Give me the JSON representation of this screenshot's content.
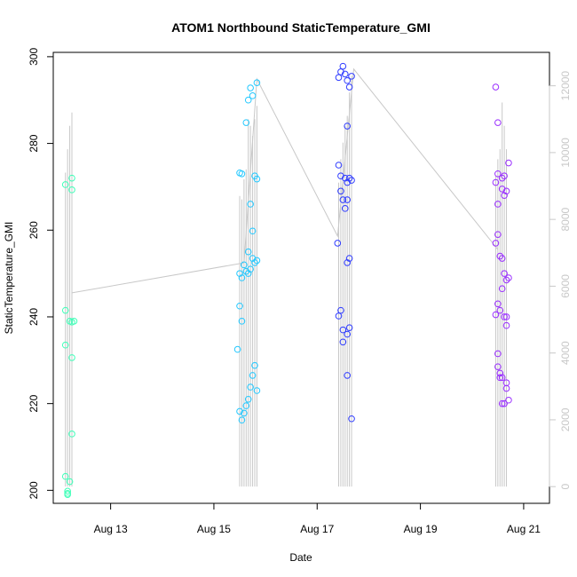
{
  "chart_data": {
    "type": "scatter",
    "title": "ATOM1 Northbound StaticTemperature_GMI",
    "xlabel": "Date",
    "ylabel": "StaticTemperature_GMI",
    "xlim": [
      "2016-08-11 21:20",
      "2016-08-21 12:00"
    ],
    "ylim": [
      197,
      301
    ],
    "y2lim": [
      -500,
      13000
    ],
    "x_ticks": [
      {
        "label": "Aug 13",
        "date": "2016-08-13 00:00"
      },
      {
        "label": "Aug 15",
        "date": "2016-08-15 00:00"
      },
      {
        "label": "Aug 17",
        "date": "2016-08-17 00:00"
      },
      {
        "label": "Aug 19",
        "date": "2016-08-19 00:00"
      },
      {
        "label": "Aug 21",
        "date": "2016-08-21 00:00"
      }
    ],
    "y_ticks": [
      200,
      220,
      240,
      260,
      280,
      300
    ],
    "y2_ticks": [
      0,
      2000,
      4000,
      6000,
      8000,
      10000,
      12000
    ],
    "grid": false,
    "legend": "none",
    "colors": {
      "flight1": "#3fffb8",
      "flight2": "#23c8ff",
      "flight3": "#2f3cff",
      "flight4": "#9a2fff",
      "altitude": "#c8c8c8"
    },
    "altitude_track": [
      {
        "date": "2016-08-12 06:00",
        "value": 5800
      },
      {
        "date": "2016-08-15 14:00",
        "value": 6700
      },
      {
        "date": "2016-08-15 20:00",
        "value": 12200
      },
      {
        "date": "2016-08-17 09:30",
        "value": 7500
      },
      {
        "date": "2016-08-17 17:00",
        "value": 12500
      },
      {
        "date": "2016-08-20 12:00",
        "value": 7100
      }
    ],
    "altitude_profiles": [
      {
        "date": "2016-08-12 03:00",
        "top": 9400
      },
      {
        "date": "2016-08-12 04:00",
        "top": 10100
      },
      {
        "date": "2016-08-12 05:00",
        "top": 10800
      },
      {
        "date": "2016-08-12 06:00",
        "top": 11200
      },
      {
        "date": "2016-08-15 12:00",
        "top": 8700
      },
      {
        "date": "2016-08-15 13:00",
        "top": 8600
      },
      {
        "date": "2016-08-15 14:00",
        "top": 9200
      },
      {
        "date": "2016-08-15 15:00",
        "top": 9500
      },
      {
        "date": "2016-08-15 16:00",
        "top": 11000
      },
      {
        "date": "2016-08-15 17:00",
        "top": 10800
      },
      {
        "date": "2016-08-15 18:00",
        "top": 10500
      },
      {
        "date": "2016-08-15 19:00",
        "top": 11000
      },
      {
        "date": "2016-08-15 20:00",
        "top": 11400
      },
      {
        "date": "2016-08-17 10:00",
        "top": 9100
      },
      {
        "date": "2016-08-17 11:00",
        "top": 9800
      },
      {
        "date": "2016-08-17 12:00",
        "top": 10300
      },
      {
        "date": "2016-08-17 13:00",
        "top": 10800
      },
      {
        "date": "2016-08-17 14:00",
        "top": 11100
      },
      {
        "date": "2016-08-17 15:00",
        "top": 11800
      },
      {
        "date": "2016-08-17 16:00",
        "top": 12300
      },
      {
        "date": "2016-08-20 11:00",
        "top": 9300
      },
      {
        "date": "2016-08-20 12:00",
        "top": 9800
      },
      {
        "date": "2016-08-20 13:00",
        "top": 10100
      },
      {
        "date": "2016-08-20 14:00",
        "top": 11500
      },
      {
        "date": "2016-08-20 15:00",
        "top": 10800
      },
      {
        "date": "2016-08-20 16:00",
        "top": 10100
      }
    ],
    "series": [
      {
        "color_key": "flight1",
        "points": [
          {
            "date": "2016-08-12 03:00",
            "value": 270.5
          },
          {
            "date": "2016-08-12 03:00",
            "value": 241.5
          },
          {
            "date": "2016-08-12 03:00",
            "value": 233.5
          },
          {
            "date": "2016-08-12 03:00",
            "value": 203.2
          },
          {
            "date": "2016-08-12 04:00",
            "value": 199.8
          },
          {
            "date": "2016-08-12 04:00",
            "value": 199.0
          },
          {
            "date": "2016-08-12 04:00",
            "value": 199.3
          },
          {
            "date": "2016-08-12 05:00",
            "value": 202.0
          },
          {
            "date": "2016-08-12 05:00",
            "value": 239.0
          },
          {
            "date": "2016-08-12 06:00",
            "value": 272.0
          },
          {
            "date": "2016-08-12 06:00",
            "value": 269.3
          },
          {
            "date": "2016-08-12 06:00",
            "value": 238.8
          },
          {
            "date": "2016-08-12 06:00",
            "value": 230.6
          },
          {
            "date": "2016-08-12 06:00",
            "value": 213.0
          },
          {
            "date": "2016-08-12 07:00",
            "value": 239.0
          }
        ]
      },
      {
        "color_key": "flight2",
        "points": [
          {
            "date": "2016-08-15 11:00",
            "value": 232.5
          },
          {
            "date": "2016-08-15 12:00",
            "value": 273.2
          },
          {
            "date": "2016-08-15 12:00",
            "value": 250.0
          },
          {
            "date": "2016-08-15 12:00",
            "value": 242.5
          },
          {
            "date": "2016-08-15 12:00",
            "value": 218.2
          },
          {
            "date": "2016-08-15 13:00",
            "value": 273.0
          },
          {
            "date": "2016-08-15 13:00",
            "value": 249.0
          },
          {
            "date": "2016-08-15 13:00",
            "value": 239.0
          },
          {
            "date": "2016-08-15 13:00",
            "value": 216.2
          },
          {
            "date": "2016-08-15 14:00",
            "value": 252.0
          },
          {
            "date": "2016-08-15 14:00",
            "value": 217.8
          },
          {
            "date": "2016-08-15 15:00",
            "value": 284.8
          },
          {
            "date": "2016-08-15 15:00",
            "value": 250.5
          },
          {
            "date": "2016-08-15 15:00",
            "value": 219.5
          },
          {
            "date": "2016-08-15 16:00",
            "value": 290.0
          },
          {
            "date": "2016-08-15 16:00",
            "value": 255.0
          },
          {
            "date": "2016-08-15 16:00",
            "value": 250.0
          },
          {
            "date": "2016-08-15 16:00",
            "value": 221.0
          },
          {
            "date": "2016-08-15 17:00",
            "value": 292.8
          },
          {
            "date": "2016-08-15 17:00",
            "value": 266.0
          },
          {
            "date": "2016-08-15 17:00",
            "value": 251.0
          },
          {
            "date": "2016-08-15 17:00",
            "value": 223.8
          },
          {
            "date": "2016-08-15 18:00",
            "value": 291.0
          },
          {
            "date": "2016-08-15 18:00",
            "value": 259.8
          },
          {
            "date": "2016-08-15 18:00",
            "value": 253.5
          },
          {
            "date": "2016-08-15 18:00",
            "value": 226.5
          },
          {
            "date": "2016-08-15 19:00",
            "value": 272.5
          },
          {
            "date": "2016-08-15 19:00",
            "value": 252.5
          },
          {
            "date": "2016-08-15 19:00",
            "value": 228.8
          },
          {
            "date": "2016-08-15 20:00",
            "value": 294.0
          },
          {
            "date": "2016-08-15 20:00",
            "value": 271.8
          },
          {
            "date": "2016-08-15 20:00",
            "value": 253.0
          },
          {
            "date": "2016-08-15 20:00",
            "value": 223.0
          }
        ]
      },
      {
        "color_key": "flight3",
        "points": [
          {
            "date": "2016-08-17 09:30",
            "value": 257.0
          },
          {
            "date": "2016-08-17 10:00",
            "value": 295.2
          },
          {
            "date": "2016-08-17 10:00",
            "value": 275.0
          },
          {
            "date": "2016-08-17 10:00",
            "value": 240.2
          },
          {
            "date": "2016-08-17 11:00",
            "value": 296.5
          },
          {
            "date": "2016-08-17 11:00",
            "value": 272.5
          },
          {
            "date": "2016-08-17 11:00",
            "value": 269.0
          },
          {
            "date": "2016-08-17 11:00",
            "value": 241.5
          },
          {
            "date": "2016-08-17 12:00",
            "value": 297.8
          },
          {
            "date": "2016-08-17 12:00",
            "value": 267.0
          },
          {
            "date": "2016-08-17 12:00",
            "value": 237.0
          },
          {
            "date": "2016-08-17 12:00",
            "value": 234.2
          },
          {
            "date": "2016-08-17 13:00",
            "value": 296.0
          },
          {
            "date": "2016-08-17 13:00",
            "value": 272.0
          },
          {
            "date": "2016-08-17 13:00",
            "value": 265.0
          },
          {
            "date": "2016-08-17 14:00",
            "value": 294.5
          },
          {
            "date": "2016-08-17 14:00",
            "value": 284.0
          },
          {
            "date": "2016-08-17 14:00",
            "value": 271.0
          },
          {
            "date": "2016-08-17 14:00",
            "value": 267.0
          },
          {
            "date": "2016-08-17 14:00",
            "value": 252.5
          },
          {
            "date": "2016-08-17 14:00",
            "value": 236.0
          },
          {
            "date": "2016-08-17 14:00",
            "value": 226.5
          },
          {
            "date": "2016-08-17 15:00",
            "value": 293.0
          },
          {
            "date": "2016-08-17 15:00",
            "value": 272.0
          },
          {
            "date": "2016-08-17 15:00",
            "value": 253.5
          },
          {
            "date": "2016-08-17 15:00",
            "value": 237.5
          },
          {
            "date": "2016-08-17 16:00",
            "value": 295.5
          },
          {
            "date": "2016-08-17 16:00",
            "value": 271.5
          },
          {
            "date": "2016-08-17 16:00",
            "value": 216.5
          }
        ]
      },
      {
        "color_key": "flight4",
        "points": [
          {
            "date": "2016-08-20 11:00",
            "value": 293.0
          },
          {
            "date": "2016-08-20 11:00",
            "value": 271.0
          },
          {
            "date": "2016-08-20 11:00",
            "value": 257.0
          },
          {
            "date": "2016-08-20 11:00",
            "value": 240.5
          },
          {
            "date": "2016-08-20 12:00",
            "value": 284.8
          },
          {
            "date": "2016-08-20 12:00",
            "value": 273.0
          },
          {
            "date": "2016-08-20 12:00",
            "value": 266.0
          },
          {
            "date": "2016-08-20 12:00",
            "value": 259.0
          },
          {
            "date": "2016-08-20 12:00",
            "value": 243.0
          },
          {
            "date": "2016-08-20 12:00",
            "value": 231.5
          },
          {
            "date": "2016-08-20 12:00",
            "value": 228.5
          },
          {
            "date": "2016-08-20 13:00",
            "value": 254.0
          },
          {
            "date": "2016-08-20 13:00",
            "value": 241.5
          },
          {
            "date": "2016-08-20 13:00",
            "value": 227.0
          },
          {
            "date": "2016-08-20 13:00",
            "value": 226.0
          },
          {
            "date": "2016-08-20 14:00",
            "value": 272.0
          },
          {
            "date": "2016-08-20 14:00",
            "value": 269.5
          },
          {
            "date": "2016-08-20 14:00",
            "value": 253.5
          },
          {
            "date": "2016-08-20 14:00",
            "value": 246.5
          },
          {
            "date": "2016-08-20 14:00",
            "value": 226.0
          },
          {
            "date": "2016-08-20 14:00",
            "value": 220.0
          },
          {
            "date": "2016-08-20 15:00",
            "value": 272.5
          },
          {
            "date": "2016-08-20 15:00",
            "value": 268.0
          },
          {
            "date": "2016-08-20 15:00",
            "value": 250.0
          },
          {
            "date": "2016-08-20 15:00",
            "value": 240.0
          },
          {
            "date": "2016-08-20 15:00",
            "value": 220.0
          },
          {
            "date": "2016-08-20 16:00",
            "value": 269.0
          },
          {
            "date": "2016-08-20 16:00",
            "value": 248.5
          },
          {
            "date": "2016-08-20 16:00",
            "value": 240.0
          },
          {
            "date": "2016-08-20 16:00",
            "value": 238.0
          },
          {
            "date": "2016-08-20 16:00",
            "value": 224.8
          },
          {
            "date": "2016-08-20 16:00",
            "value": 223.5
          },
          {
            "date": "2016-08-20 17:00",
            "value": 275.5
          },
          {
            "date": "2016-08-20 17:00",
            "value": 249.0
          },
          {
            "date": "2016-08-20 17:00",
            "value": 220.8
          }
        ]
      }
    ]
  }
}
